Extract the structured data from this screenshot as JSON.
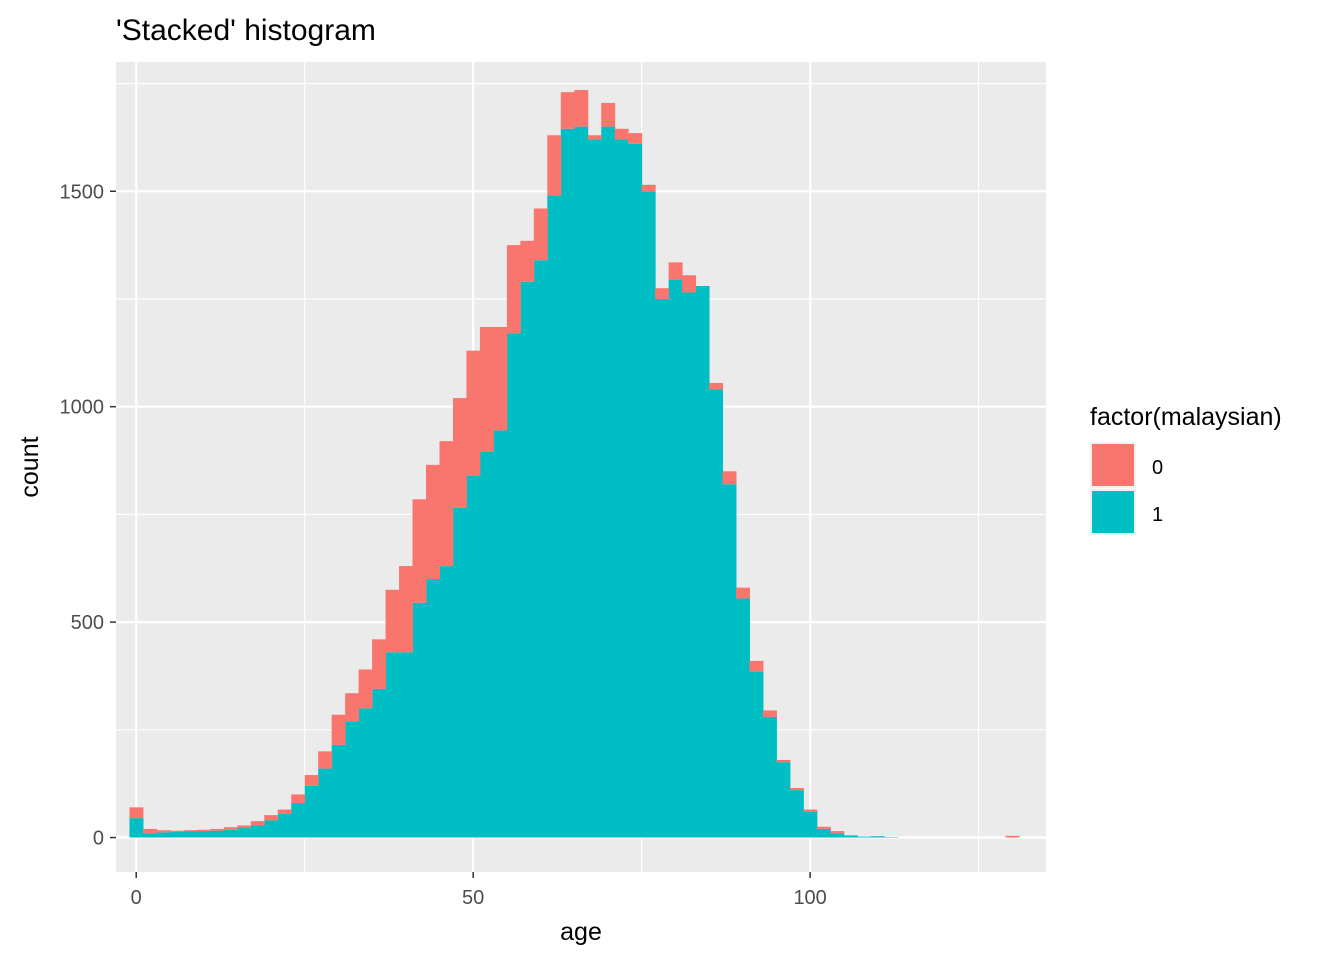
{
  "chart_data": {
    "type": "bar",
    "subtype": "stacked-histogram",
    "title": "'Stacked' histogram",
    "xlabel": "age",
    "ylabel": "count",
    "xlim": [
      -3,
      135
    ],
    "ylim": [
      -80,
      1800
    ],
    "x_ticks": [
      0,
      50,
      100
    ],
    "y_ticks": [
      0,
      500,
      1000,
      1500
    ],
    "bin_width": 2,
    "grid": true,
    "legend": {
      "title": "factor(malaysian)",
      "position": "right",
      "entries": [
        {
          "label": "0",
          "color": "#F8766D"
        },
        {
          "label": "1",
          "color": "#00BFC4"
        }
      ]
    },
    "x": [
      0,
      2,
      4,
      6,
      8,
      10,
      12,
      14,
      16,
      18,
      20,
      22,
      24,
      26,
      28,
      30,
      32,
      34,
      36,
      38,
      40,
      42,
      44,
      46,
      48,
      50,
      52,
      54,
      56,
      58,
      60,
      62,
      64,
      66,
      68,
      70,
      72,
      74,
      76,
      78,
      80,
      82,
      84,
      86,
      88,
      90,
      92,
      94,
      96,
      98,
      100,
      102,
      104,
      106,
      108,
      110,
      112,
      114,
      116,
      118,
      120,
      122,
      124,
      126,
      128,
      130
    ],
    "series": [
      {
        "name": "1",
        "color": "#00BFC4",
        "values": [
          45,
          10,
          12,
          13,
          14,
          15,
          16,
          18,
          22,
          28,
          40,
          55,
          80,
          120,
          160,
          215,
          270,
          300,
          345,
          430,
          430,
          545,
          600,
          630,
          765,
          840,
          895,
          945,
          1170,
          1290,
          1340,
          1490,
          1645,
          1650,
          1620,
          1650,
          1620,
          1610,
          1500,
          1250,
          1295,
          1265,
          1280,
          1040,
          820,
          555,
          385,
          280,
          175,
          110,
          60,
          20,
          10,
          5,
          2,
          3,
          1,
          0,
          0,
          0,
          0,
          0,
          0,
          0,
          0,
          0
        ]
      },
      {
        "name": "0",
        "color": "#F8766D",
        "values": [
          25,
          10,
          5,
          3,
          3,
          3,
          4,
          6,
          6,
          10,
          12,
          10,
          20,
          25,
          40,
          70,
          65,
          90,
          115,
          145,
          200,
          240,
          265,
          290,
          255,
          290,
          290,
          240,
          205,
          95,
          120,
          140,
          85,
          85,
          10,
          55,
          25,
          25,
          15,
          25,
          40,
          40,
          0,
          15,
          30,
          25,
          25,
          15,
          5,
          5,
          5,
          5,
          5,
          0,
          0,
          0,
          0,
          0,
          0,
          0,
          0,
          0,
          0,
          0,
          0,
          4
        ]
      }
    ]
  }
}
